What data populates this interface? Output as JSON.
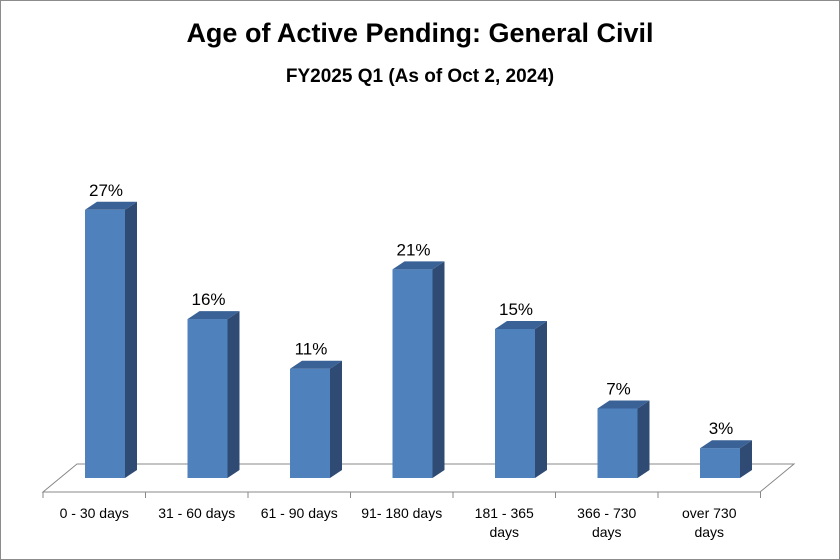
{
  "chart_data": {
    "type": "bar",
    "title": "Age of Active Pending: General Civil",
    "subtitle": "FY2025 Q1 (As of Oct 2, 2024)",
    "categories": [
      [
        "0 - 30 days"
      ],
      [
        "31 - 60 days"
      ],
      [
        "61 - 90 days"
      ],
      [
        "91- 180 days"
      ],
      [
        "181 - 365",
        "days"
      ],
      [
        "366 - 730",
        "days"
      ],
      [
        "over 730",
        "days"
      ]
    ],
    "values": [
      27,
      16,
      11,
      21,
      15,
      7,
      3
    ],
    "data_labels": [
      "27%",
      "16%",
      "11%",
      "21%",
      "15%",
      "7%",
      "3%"
    ],
    "unit": "%",
    "ylim": [
      0,
      30
    ],
    "grid": false,
    "legend": "none",
    "colors": {
      "bar_front": "#4f81bd",
      "bar_side": "#2f4b73",
      "bar_top": "#3b6296",
      "axis": "#888888"
    }
  }
}
